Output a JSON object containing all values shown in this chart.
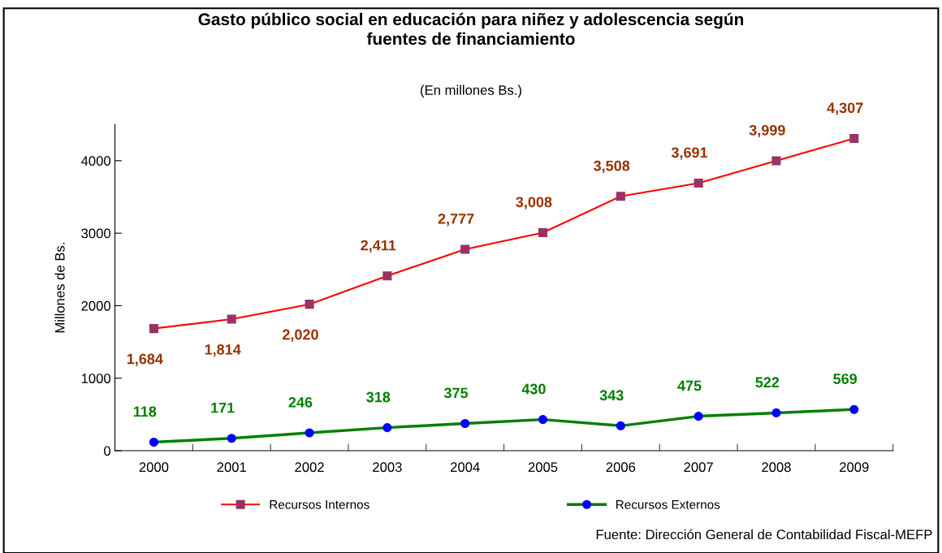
{
  "chart_data": {
    "type": "line",
    "title": "Gasto público social en educación para niñez y adolescencia según\nfuentes de financiamiento",
    "subtitle": "(En millones Bs.)",
    "ylabel": "Millones de Bs.",
    "categories": [
      "2000",
      "2001",
      "2002",
      "2003",
      "2004",
      "2005",
      "2006",
      "2007",
      "2008",
      "2009"
    ],
    "series": [
      {
        "name": "Recursos Internos",
        "color": "#ff0000",
        "marker": "square",
        "values": [
          1684,
          1814,
          2020,
          2411,
          2777,
          3008,
          3508,
          3691,
          3999,
          4307
        ],
        "value_labels": [
          "1,684",
          "1,814",
          "2,020",
          "2,411",
          "2,777",
          "3,008",
          "3,508",
          "3,691",
          "3,999",
          "4,307"
        ]
      },
      {
        "name": "Recursos Externos",
        "color": "#008000",
        "marker": "circle",
        "values": [
          118,
          171,
          246,
          318,
          375,
          430,
          343,
          475,
          522,
          569
        ],
        "value_labels": [
          "118",
          "171",
          "246",
          "318",
          "375",
          "430",
          "343",
          "475",
          "522",
          "569"
        ]
      }
    ],
    "ylim": [
      0,
      4500
    ],
    "yticks": [
      0,
      1000,
      2000,
      3000,
      4000
    ],
    "grid": false,
    "legend": "bottom",
    "annotations": [
      "Fuente: Dirección General de Contabilidad Fiscal-MEFP"
    ]
  }
}
